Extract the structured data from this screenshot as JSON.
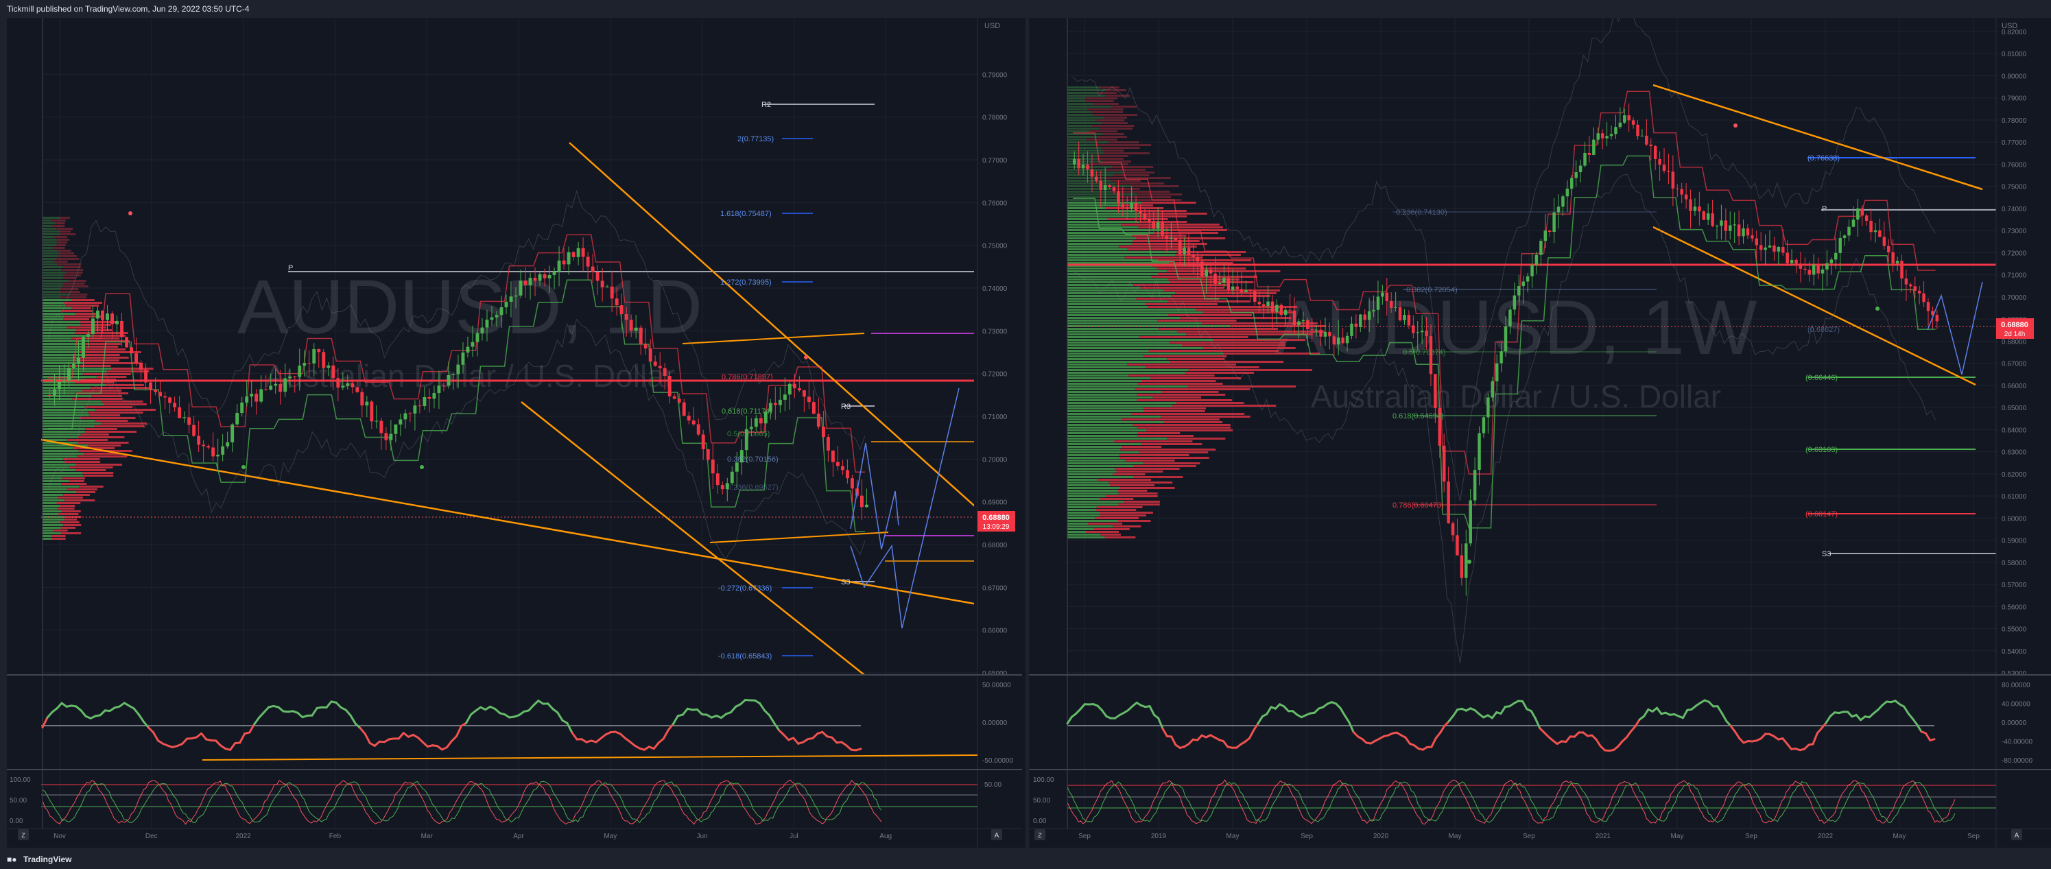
{
  "header": {
    "published": "Tickmill published on TradingView.com, Jun 29, 2022 03:50 UTC-4"
  },
  "footer": {
    "brand": "TradingView",
    "logo_icon": "tradingview-logo-icon"
  },
  "colors": {
    "background": "#131722",
    "frame": "#1e222d",
    "grid": "#2a2e39",
    "bull": "#4caf50",
    "bear": "#f23645",
    "orange": "#ff9800",
    "blue": "#2962ff",
    "price_tag": "#f23645"
  },
  "panes": [
    {
      "symbol": "AUDUSD, 1D",
      "description": "Australian Dollar / U.S. Dollar",
      "currency": "USD",
      "price_label": "0.68880",
      "countdown": "13:09:29",
      "y_ticks": [
        "0.79000",
        "0.78000",
        "0.77000",
        "0.76000",
        "0.75000",
        "0.74000",
        "0.73000",
        "0.72000",
        "0.71000",
        "0.70000",
        "0.69000",
        "0.68000",
        "0.67000",
        "0.66000",
        "0.65000"
      ],
      "x_ticks": [
        "Nov",
        "Dec",
        "2022",
        "Feb",
        "Mar",
        "Apr",
        "May",
        "Jun",
        "Jul",
        "Aug"
      ],
      "osc1_ticks": [
        "50.00000",
        "0.00000",
        "-50.00000"
      ],
      "osc2_ticks": [
        "100.00",
        "50.00",
        "0.00"
      ],
      "osc2_right_tick": "50.00",
      "pivots": [
        "R2",
        "P",
        "R3",
        "S3"
      ],
      "fib_labels": [
        "2(0.77135)",
        "1.618(0.75487)",
        "1.272(0.73995)",
        "0.786(0.71897)",
        "0.618(0.71174)",
        "0.5(0.70665)",
        "0.382(0.70156)",
        "0.236(0.69527)",
        "-0.272(0.67336)",
        "-0.618(0.65843)"
      ],
      "corner_button": "A",
      "left_button": "Z"
    },
    {
      "symbol": "AUDUSD, 1W",
      "description": "Australian Dollar / U.S. Dollar",
      "currency": "USD",
      "price_label": "0.68880",
      "countdown": "2d 14h",
      "y_ticks": [
        "0.82000",
        "0.81000",
        "0.80000",
        "0.79000",
        "0.78000",
        "0.77000",
        "0.76000",
        "0.75000",
        "0.74000",
        "0.73000",
        "0.72000",
        "0.71000",
        "0.70000",
        "0.69000",
        "0.68000",
        "0.67000",
        "0.66000",
        "0.65000",
        "0.64000",
        "0.63000",
        "0.62000",
        "0.61000",
        "0.60000",
        "0.59000",
        "0.58000",
        "0.57000",
        "0.56000",
        "0.55000",
        "0.54000",
        "0.53000"
      ],
      "x_ticks": [
        "Sep",
        "2019",
        "May",
        "Sep",
        "2020",
        "May",
        "Sep",
        "2021",
        "May",
        "Sep",
        "2022",
        "May",
        "Sep"
      ],
      "osc1_ticks": [
        "80.00000",
        "40.00000",
        "0.00000",
        "-40.00000",
        "-80.00000"
      ],
      "osc2_ticks": [
        "100.00",
        "50.00",
        "0.00"
      ],
      "pivots": [
        "P",
        "S3"
      ],
      "fib_labels": [
        "0.236(0.74130)",
        "0.382(0.72054)",
        "0.5(0.70374)",
        "0.618(0.64694)",
        "0.786(0.60473)"
      ],
      "level_labels": [
        "(0.76638)",
        "(0.68627)",
        "(0.66446)",
        "(0.63103)",
        "(0.60147)"
      ],
      "corner_button": "A",
      "left_button": "Z"
    }
  ],
  "chart_data": [
    {
      "type": "candlestick",
      "title": "AUDUSD, 1D",
      "subtitle": "Australian Dollar / U.S. Dollar",
      "ylim": [
        0.65,
        0.8
      ],
      "grid": true,
      "series": [
        {
          "name": "AUDUSD",
          "close_path": [
            [
              0,
              0.715
            ],
            [
              5,
              0.722
            ],
            [
              10,
              0.735
            ],
            [
              15,
              0.73
            ],
            [
              20,
              0.718
            ],
            [
              25,
              0.712
            ],
            [
              30,
              0.706
            ],
            [
              35,
              0.7
            ],
            [
              40,
              0.713
            ],
            [
              45,
              0.716
            ],
            [
              50,
              0.718
            ],
            [
              55,
              0.725
            ],
            [
              60,
              0.718
            ],
            [
              65,
              0.714
            ],
            [
              70,
              0.704
            ],
            [
              75,
              0.712
            ],
            [
              80,
              0.716
            ],
            [
              85,
              0.722
            ],
            [
              90,
              0.73
            ],
            [
              95,
              0.738
            ],
            [
              100,
              0.742
            ],
            [
              105,
              0.744
            ],
            [
              110,
              0.749
            ],
            [
              115,
              0.741
            ],
            [
              120,
              0.733
            ],
            [
              125,
              0.724
            ],
            [
              130,
              0.714
            ],
            [
              135,
              0.705
            ],
            [
              140,
              0.692
            ],
            [
              145,
              0.706
            ],
            [
              150,
              0.712
            ],
            [
              155,
              0.718
            ],
            [
              160,
              0.708
            ],
            [
              165,
              0.696
            ],
            [
              170,
              0.688
            ]
          ]
        }
      ],
      "last_price": 0.6888
    },
    {
      "type": "candlestick",
      "title": "AUDUSD, 1W",
      "subtitle": "Australian Dollar / U.S. Dollar",
      "ylim": [
        0.53,
        0.82
      ],
      "grid": true,
      "series": [
        {
          "name": "AUDUSD",
          "close_path": [
            [
              0,
              0.76
            ],
            [
              10,
              0.745
            ],
            [
              20,
              0.73
            ],
            [
              30,
              0.71
            ],
            [
              40,
              0.7
            ],
            [
              50,
              0.69
            ],
            [
              60,
              0.68
            ],
            [
              70,
              0.7
            ],
            [
              80,
              0.68
            ],
            [
              85,
              0.6
            ],
            [
              88,
              0.575
            ],
            [
              92,
              0.64
            ],
            [
              100,
              0.7
            ],
            [
              110,
              0.74
            ],
            [
              118,
              0.77
            ],
            [
              125,
              0.78
            ],
            [
              130,
              0.77
            ],
            [
              140,
              0.74
            ],
            [
              150,
              0.73
            ],
            [
              160,
              0.72
            ],
            [
              170,
              0.71
            ],
            [
              178,
              0.74
            ],
            [
              185,
              0.72
            ],
            [
              190,
              0.705
            ],
            [
              196,
              0.69
            ]
          ]
        }
      ],
      "last_price": 0.6888
    }
  ]
}
